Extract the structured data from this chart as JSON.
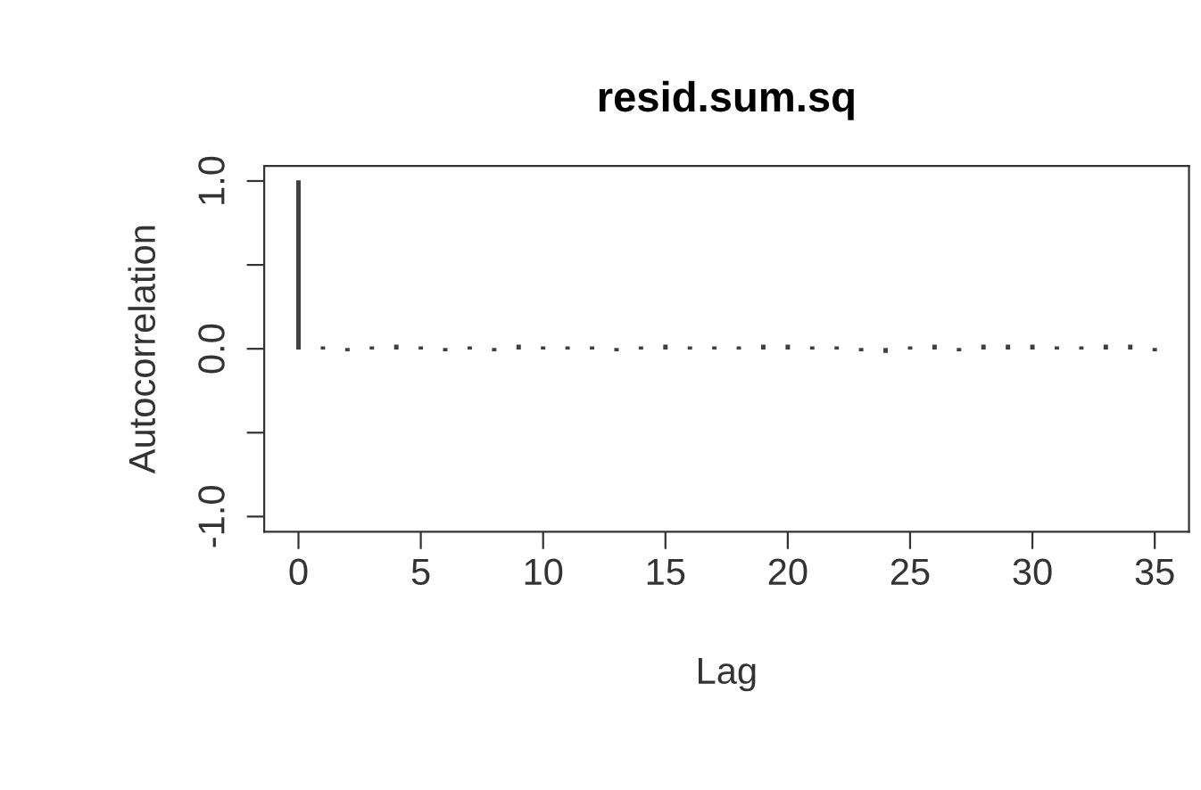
{
  "chart_data": {
    "type": "bar",
    "title": "resid.sum.sq",
    "xlabel": "Lag",
    "ylabel": "Autocorrelation",
    "x": [
      0,
      1,
      2,
      3,
      4,
      5,
      6,
      7,
      8,
      9,
      10,
      11,
      12,
      13,
      14,
      15,
      16,
      17,
      18,
      19,
      20,
      21,
      22,
      23,
      24,
      25,
      26,
      27,
      28,
      29,
      30,
      31,
      32,
      33,
      34,
      35
    ],
    "values": [
      1.0,
      0.01,
      -0.01,
      0.01,
      0.02,
      0.01,
      -0.01,
      0.01,
      -0.01,
      0.02,
      0.01,
      0.01,
      0.01,
      -0.01,
      0.01,
      0.02,
      0.01,
      0.01,
      0.01,
      0.02,
      0.02,
      0.01,
      0.01,
      -0.01,
      -0.02,
      0.01,
      0.02,
      -0.01,
      0.02,
      0.02,
      0.02,
      0.01,
      0.01,
      0.02,
      0.02,
      -0.01
    ],
    "color": "#404040",
    "xlim": [
      -1.4,
      36.4
    ],
    "xticks": [
      0,
      5,
      10,
      15,
      20,
      25,
      30,
      35
    ],
    "ylim": [
      -1.09,
      1.09
    ],
    "yticks": [
      {
        "value": -1,
        "label": "-1.0"
      },
      {
        "value": -0.5,
        "label": null
      },
      {
        "value": 0,
        "label": "0.0"
      },
      {
        "value": 0.5,
        "label": null
      },
      {
        "value": 1,
        "label": "1.0"
      }
    ],
    "grid": false,
    "legend": false
  }
}
